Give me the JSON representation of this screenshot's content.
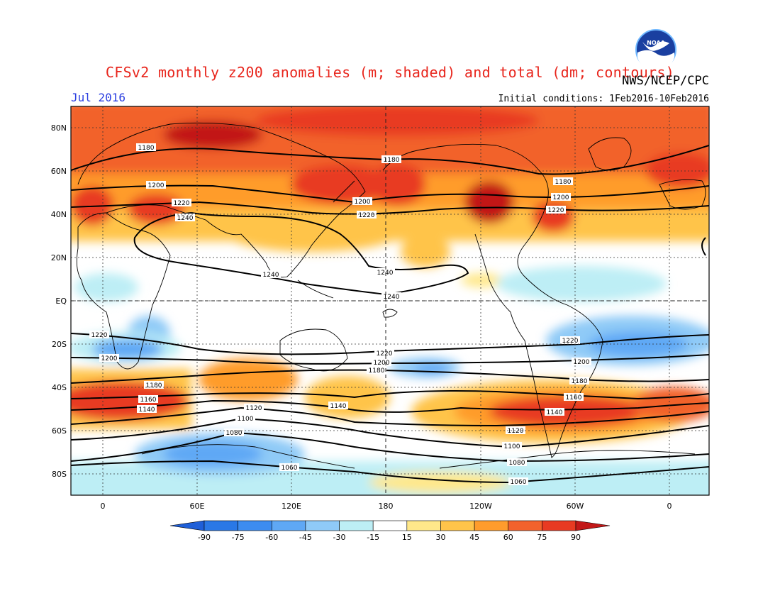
{
  "title": "CFSv2 monthly z200 anomalies (m; shaded) and total (dm; contours)",
  "credit": "NWS/NCEP/CPC",
  "month": "Jul 2016",
  "initial_conditions": "Initial conditions: 1Feb2016-10Feb2016",
  "logo_text": "NOAA",
  "lat_labels": [
    "80N",
    "60N",
    "40N",
    "20N",
    "EQ",
    "20S",
    "40S",
    "60S",
    "80S"
  ],
  "lon_labels": [
    "0",
    "60E",
    "120E",
    "180",
    "120W",
    "60W",
    "0"
  ],
  "colorbar": {
    "ticks": [
      "-90",
      "-75",
      "-60",
      "-45",
      "-30",
      "-15",
      "15",
      "30",
      "45",
      "60",
      "75",
      "90"
    ],
    "colors": [
      "#1f5fd8",
      "#2a78e6",
      "#3d8cf0",
      "#5fa8f5",
      "#8fcaf7",
      "#bdeef5",
      "#ffffff",
      "#ffe88a",
      "#ffc44a",
      "#ff9c2c",
      "#f2622c",
      "#e83a22",
      "#c21818"
    ]
  },
  "contour_labels": [
    "1180",
    "1200",
    "1220",
    "1240",
    "1100",
    "1120",
    "1140",
    "1160",
    "1080",
    "1060"
  ],
  "chart_data": {
    "type": "heatmap",
    "title": "CFSv2 monthly z200 anomalies (m; shaded) and total (dm; contours)",
    "xlabel": "",
    "ylabel": "",
    "x_ticks": [
      "0",
      "60E",
      "120E",
      "180",
      "120W",
      "60W",
      "0"
    ],
    "y_ticks": [
      "80N",
      "60N",
      "40N",
      "20N",
      "EQ",
      "20S",
      "40S",
      "60S",
      "80S"
    ],
    "colorbar_ticks": [
      -90,
      -75,
      -60,
      -45,
      -30,
      -15,
      15,
      30,
      45,
      60,
      75,
      90
    ],
    "contour_levels_dm": [
      1060,
      1080,
      1100,
      1120,
      1140,
      1160,
      1180,
      1200,
      1220,
      1240
    ]
  }
}
